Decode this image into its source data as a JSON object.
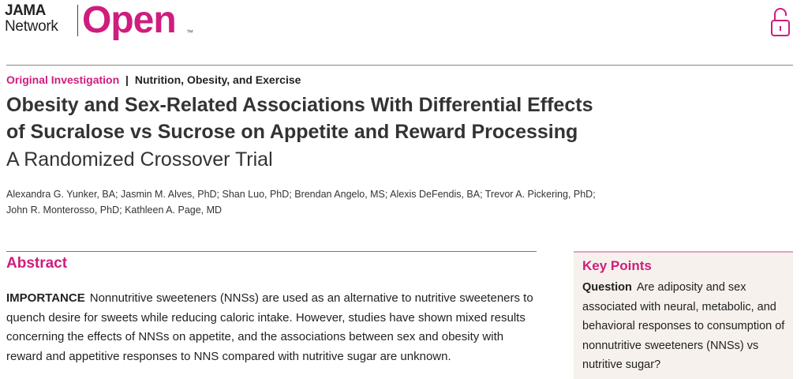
{
  "header": {
    "logo": {
      "line1": "JAMA",
      "line2": "Network",
      "brand": "Open",
      "trademark": "™"
    }
  },
  "article": {
    "type": "Original Investigation",
    "separator": "|",
    "section": "Nutrition, Obesity, and Exercise",
    "title_lines": [
      "Obesity and Sex-Related Associations With Differential Effects",
      "of Sucralose vs Sucrose on Appetite and Reward Processing"
    ],
    "subtitle": "A Randomized Crossover Trial",
    "author_lines": [
      "Alexandra G. Yunker, BA; Jasmin M. Alves, PhD; Shan Luo, PhD; Brendan Angelo, MS; Alexis DeFendis, BA; Trevor A. Pickering, PhD;",
      "John R. Monterosso, PhD; Kathleen A. Page, MD"
    ]
  },
  "abstract": {
    "heading": "Abstract",
    "importance": {
      "label": "IMPORTANCE",
      "lines": [
        "Nonnutritive sweeteners (NNSs) are used as an alternative to nutritive sweeteners to",
        "quench desire for sweets while reducing caloric intake. However, studies have shown mixed results",
        "concerning the effects of NNSs on appetite, and the associations between sex and obesity with",
        "reward and appetitive responses to NNS compared with nutritive sugar are unknown."
      ]
    }
  },
  "key_points": {
    "heading": "Key Points",
    "question": {
      "label": "Question",
      "lines": [
        "Are adiposity and sex",
        "associated with neural, metabolic, and",
        "behavioral responses to consumption of",
        "nonnutritive sweeteners (NNSs) vs",
        "nutritive sugar?"
      ]
    }
  }
}
